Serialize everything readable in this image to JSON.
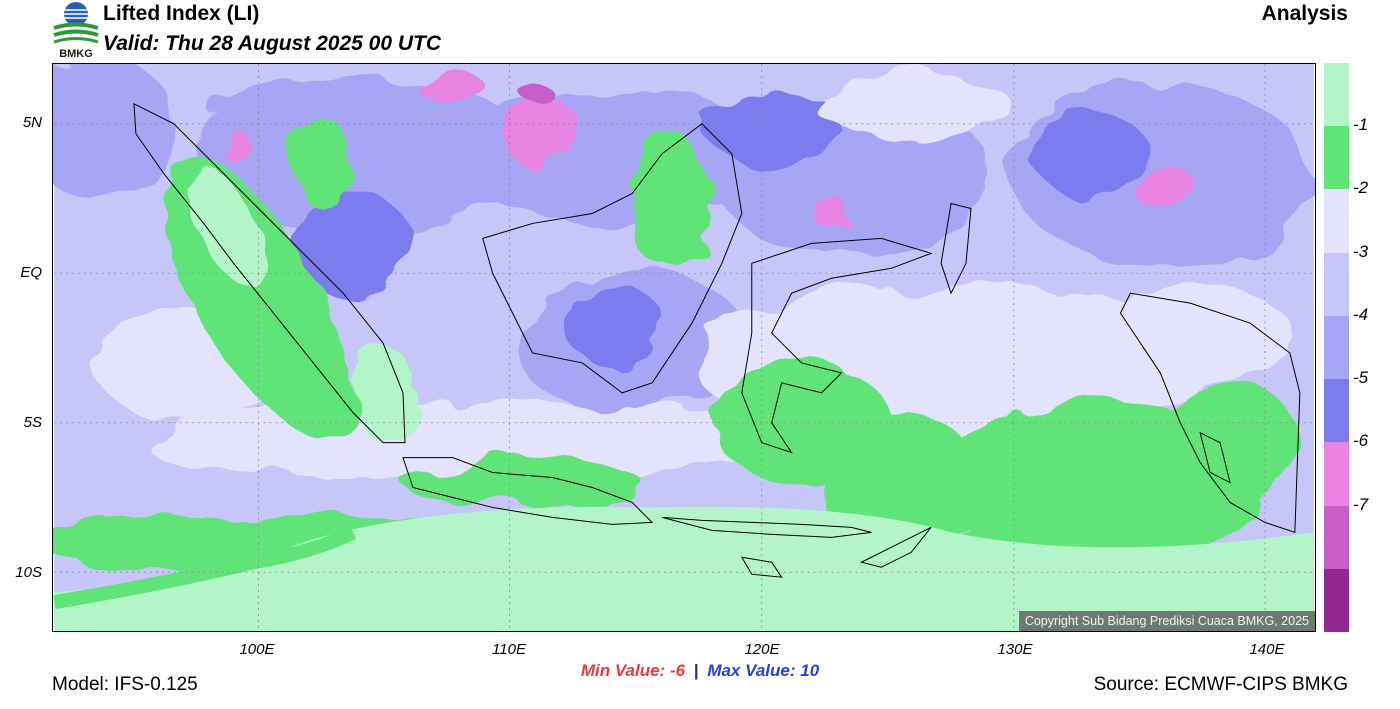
{
  "header": {
    "title": "Lifted Index (LI)",
    "valid": "Valid: Thu 28 August 2025 00 UTC",
    "mode": "Analysis",
    "logo_text": "BMKG"
  },
  "map": {
    "lat_labels": [
      "5N",
      "EQ",
      "5S",
      "10S"
    ],
    "lon_labels": [
      "100E",
      "110E",
      "120E",
      "130E",
      "140E"
    ],
    "copyright": "Copyright Sub Bidang Prediksi Cuaca BMKG, 2025"
  },
  "stats": {
    "min_label": "Min Value:",
    "min_value": "-6",
    "separator": "|",
    "max_label": "Max Value:",
    "max_value": "10"
  },
  "footer": {
    "model": "Model: IFS-0.125",
    "source": "Source: ECMWF-CIPS BMKG"
  },
  "legend": {
    "colors": [
      "#b3f5c8",
      "#60e478",
      "#e3e3fd",
      "#c6c6f9",
      "#a6a6f5",
      "#7c7cef",
      "#e884e2",
      "#c65fc8",
      "#902a92"
    ],
    "labels": [
      "-1",
      "-2",
      "-3",
      "-4",
      "-5",
      "-6",
      "-7"
    ]
  }
}
